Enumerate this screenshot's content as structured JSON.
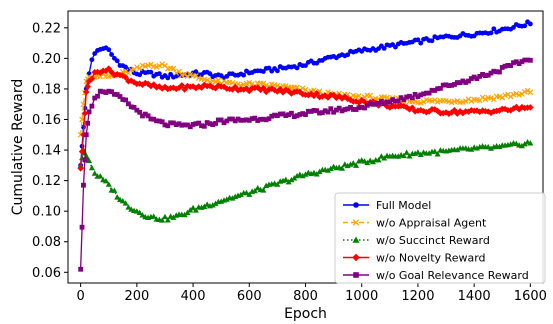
{
  "chart_data": {
    "type": "line",
    "xlabel": "Epoch",
    "ylabel": "Cumulative Reward",
    "xlim": [
      -45,
      1645
    ],
    "ylim": [
      0.053,
      0.231
    ],
    "xticks": [
      0,
      200,
      400,
      600,
      800,
      1000,
      1200,
      1400,
      1600
    ],
    "yticks": [
      0.06,
      0.08,
      0.1,
      0.12,
      0.14,
      0.16,
      0.18,
      0.2,
      0.22
    ],
    "grid": false,
    "legend_position": "lower-right",
    "series": [
      {
        "name": "Full Model",
        "color": "#0000ff",
        "marker": "circle",
        "linestyle": "solid",
        "points": [
          [
            0,
            0.13
          ],
          [
            10,
            0.155
          ],
          [
            20,
            0.18
          ],
          [
            30,
            0.19
          ],
          [
            40,
            0.2
          ],
          [
            60,
            0.205
          ],
          [
            80,
            0.207
          ],
          [
            100,
            0.205
          ],
          [
            120,
            0.2
          ],
          [
            150,
            0.195
          ],
          [
            200,
            0.19
          ],
          [
            250,
            0.19
          ],
          [
            300,
            0.188
          ],
          [
            350,
            0.189
          ],
          [
            400,
            0.19
          ],
          [
            450,
            0.19
          ],
          [
            500,
            0.188
          ],
          [
            550,
            0.189
          ],
          [
            600,
            0.191
          ],
          [
            700,
            0.193
          ],
          [
            800,
            0.196
          ],
          [
            900,
            0.201
          ],
          [
            1000,
            0.205
          ],
          [
            1100,
            0.208
          ],
          [
            1200,
            0.211
          ],
          [
            1300,
            0.214
          ],
          [
            1400,
            0.216
          ],
          [
            1500,
            0.219
          ],
          [
            1600,
            0.223
          ]
        ]
      },
      {
        "name": "w/o Appraisal Agent",
        "color": "#ffa500",
        "marker": "x",
        "linestyle": "dashed",
        "points": [
          [
            0,
            0.15
          ],
          [
            10,
            0.17
          ],
          [
            20,
            0.185
          ],
          [
            30,
            0.188
          ],
          [
            50,
            0.189
          ],
          [
            100,
            0.188
          ],
          [
            150,
            0.19
          ],
          [
            200,
            0.193
          ],
          [
            250,
            0.196
          ],
          [
            300,
            0.195
          ],
          [
            350,
            0.191
          ],
          [
            400,
            0.188
          ],
          [
            450,
            0.186
          ],
          [
            500,
            0.184
          ],
          [
            600,
            0.183
          ],
          [
            700,
            0.182
          ],
          [
            800,
            0.179
          ],
          [
            900,
            0.176
          ],
          [
            1000,
            0.175
          ],
          [
            1100,
            0.173
          ],
          [
            1200,
            0.172
          ],
          [
            1300,
            0.172
          ],
          [
            1400,
            0.173
          ],
          [
            1500,
            0.175
          ],
          [
            1600,
            0.178
          ]
        ]
      },
      {
        "name": "w/o Succinct Reward",
        "color": "#008000",
        "marker": "triangle",
        "linestyle": "dotted",
        "points": [
          [
            0,
            0.13
          ],
          [
            10,
            0.14
          ],
          [
            20,
            0.136
          ],
          [
            30,
            0.133
          ],
          [
            50,
            0.125
          ],
          [
            100,
            0.117
          ],
          [
            150,
            0.106
          ],
          [
            200,
            0.1
          ],
          [
            250,
            0.096
          ],
          [
            300,
            0.095
          ],
          [
            350,
            0.097
          ],
          [
            400,
            0.101
          ],
          [
            450,
            0.104
          ],
          [
            500,
            0.107
          ],
          [
            600,
            0.112
          ],
          [
            700,
            0.118
          ],
          [
            800,
            0.124
          ],
          [
            900,
            0.128
          ],
          [
            1000,
            0.132
          ],
          [
            1100,
            0.136
          ],
          [
            1200,
            0.138
          ],
          [
            1300,
            0.139
          ],
          [
            1400,
            0.141
          ],
          [
            1500,
            0.142
          ],
          [
            1600,
            0.145
          ]
        ]
      },
      {
        "name": "w/o Novelty Reward",
        "color": "#ff0000",
        "marker": "diamond",
        "linestyle": "solid",
        "points": [
          [
            0,
            0.128
          ],
          [
            10,
            0.15
          ],
          [
            20,
            0.178
          ],
          [
            30,
            0.185
          ],
          [
            50,
            0.19
          ],
          [
            80,
            0.193
          ],
          [
            100,
            0.192
          ],
          [
            150,
            0.188
          ],
          [
            200,
            0.184
          ],
          [
            250,
            0.182
          ],
          [
            300,
            0.18
          ],
          [
            350,
            0.181
          ],
          [
            400,
            0.181
          ],
          [
            450,
            0.182
          ],
          [
            500,
            0.181
          ],
          [
            600,
            0.18
          ],
          [
            700,
            0.179
          ],
          [
            800,
            0.177
          ],
          [
            900,
            0.175
          ],
          [
            1000,
            0.172
          ],
          [
            1100,
            0.169
          ],
          [
            1200,
            0.166
          ],
          [
            1300,
            0.165
          ],
          [
            1400,
            0.165
          ],
          [
            1500,
            0.166
          ],
          [
            1600,
            0.168
          ]
        ]
      },
      {
        "name": "w/o Goal Relevance Reward",
        "color": "#800080",
        "marker": "square",
        "linestyle": "solid",
        "points": [
          [
            0,
            0.062
          ],
          [
            10,
            0.117
          ],
          [
            20,
            0.15
          ],
          [
            30,
            0.165
          ],
          [
            50,
            0.175
          ],
          [
            80,
            0.179
          ],
          [
            100,
            0.178
          ],
          [
            150,
            0.173
          ],
          [
            200,
            0.166
          ],
          [
            250,
            0.16
          ],
          [
            300,
            0.157
          ],
          [
            350,
            0.156
          ],
          [
            400,
            0.156
          ],
          [
            450,
            0.157
          ],
          [
            500,
            0.159
          ],
          [
            600,
            0.16
          ],
          [
            700,
            0.162
          ],
          [
            800,
            0.164
          ],
          [
            900,
            0.166
          ],
          [
            1000,
            0.168
          ],
          [
            1100,
            0.172
          ],
          [
            1200,
            0.176
          ],
          [
            1300,
            0.182
          ],
          [
            1400,
            0.187
          ],
          [
            1500,
            0.193
          ],
          [
            1600,
            0.2
          ]
        ]
      }
    ]
  }
}
